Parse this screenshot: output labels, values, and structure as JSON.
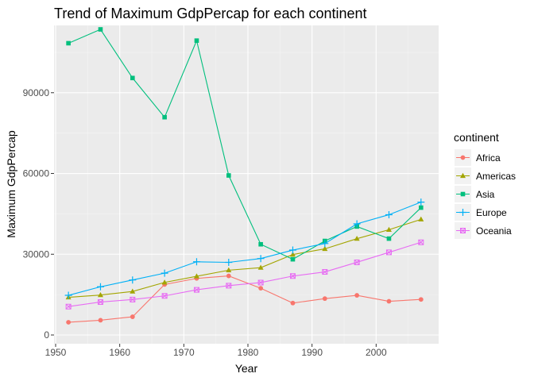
{
  "chart_data": {
    "type": "line",
    "title": "Trend of Maximum GdpPercap for each continent",
    "xlabel": "Year",
    "ylabel": "Maximum GdpPercap",
    "xlim": [
      1950,
      2010
    ],
    "ylim": [
      0,
      115000
    ],
    "x_ticks": [
      1950,
      1960,
      1970,
      1980,
      1990,
      2000
    ],
    "y_ticks": [
      0,
      30000,
      60000,
      90000
    ],
    "x_tick_labels": [
      "1950",
      "1960",
      "1970",
      "1980",
      "1990",
      "2000"
    ],
    "y_tick_labels": [
      "0",
      "30000",
      "60000",
      "90000"
    ],
    "grid": true,
    "legend": {
      "title": "continent",
      "position": "right"
    },
    "x": [
      1952,
      1957,
      1962,
      1967,
      1972,
      1977,
      1982,
      1987,
      1992,
      1997,
      2002,
      2007
    ],
    "series": [
      {
        "name": "Africa",
        "color": "#F8766D",
        "marker": "circle",
        "values": [
          4725,
          5487,
          6757,
          18773,
          21011,
          21951,
          17364,
          11864,
          13522,
          14723,
          12522,
          13206
        ]
      },
      {
        "name": "Americas",
        "color": "#A3A500",
        "marker": "triangle",
        "values": [
          13990,
          14847,
          16173,
          19530,
          21806,
          24073,
          25010,
          29884,
          32004,
          35767,
          39097,
          42952
        ]
      },
      {
        "name": "Asia",
        "color": "#00BF7D",
        "marker": "square",
        "values": [
          108382,
          113523,
          95458,
          80895,
          109348,
          59265,
          33693,
          28118,
          34933,
          40300,
          35800,
          47307
        ]
      },
      {
        "name": "Europe",
        "color": "#00B0F6",
        "marker": "plus",
        "values": [
          14734,
          17909,
          20431,
          22966,
          27195,
          26982,
          28398,
          31541,
          33966,
          41283,
          44684,
          49357
        ]
      },
      {
        "name": "Oceania",
        "color": "#E76BF3",
        "marker": "boxx",
        "values": [
          10557,
          12247,
          13176,
          14526,
          16789,
          18334,
          19477,
          21889,
          23425,
          26998,
          30688,
          34435
        ]
      }
    ]
  }
}
